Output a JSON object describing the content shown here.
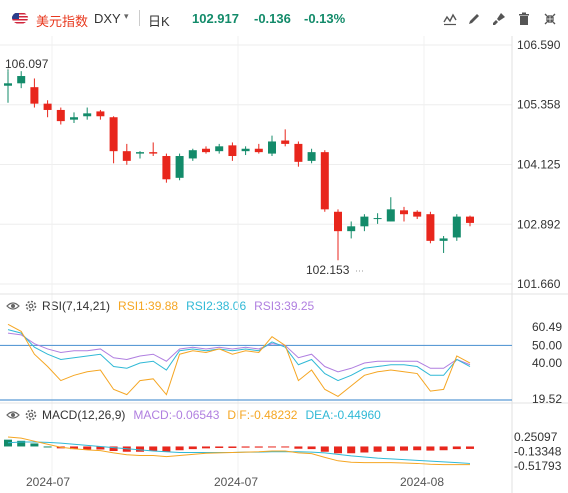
{
  "toolbar": {
    "name": "美元指数",
    "symbol": "DXY",
    "caret": "▾",
    "period": "日K",
    "price": "102.917",
    "change": "-0.136",
    "change_pct": "-0.13%",
    "up_color": "#e8261c",
    "down_color": "#138b6a"
  },
  "icons": [
    "line-draw-icon",
    "pen-icon",
    "brush-icon",
    "trash-icon",
    "collapse-icon",
    "eye-icon",
    "gear-icon"
  ],
  "price_pane": {
    "y_ticks": [
      "106.590",
      "105.358",
      "104.125",
      "102.892",
      "101.660"
    ],
    "high_label": "106.097",
    "low_label": "102.153"
  },
  "rsi_pane": {
    "title": "RSI(7,14,21)",
    "rsi1": "RSI1:39.88",
    "rsi2": "RSI2:38.06",
    "rsi3": "RSI3:39.25",
    "y_ticks": [
      "60.49",
      "50.00",
      "40.00",
      "19.52"
    ],
    "colors": {
      "rsi1": "#f5a623",
      "rsi2": "#30b9d6",
      "rsi3": "#b07fe0"
    }
  },
  "macd_pane": {
    "title": "MACD(12,26,9)",
    "macd": "MACD:-0.06543",
    "dif": "DIF:-0.48232",
    "dea": "DEA:-0.44960",
    "y_ticks": [
      "0.25097",
      "-0.13348",
      "-0.51793"
    ],
    "colors": {
      "macd": "#b07fe0",
      "dif": "#f5a623",
      "dea": "#30b9d6"
    }
  },
  "x_labels": [
    "2024-07",
    "2024-07",
    "2024-08"
  ],
  "chart_data": {
    "type": "candlestick",
    "y_range": [
      101.66,
      106.59
    ],
    "candles": [
      {
        "o": 105.75,
        "h": 106.1,
        "l": 105.4,
        "c": 105.8
      },
      {
        "o": 105.8,
        "h": 106.05,
        "l": 105.7,
        "c": 105.95
      },
      {
        "o": 105.72,
        "h": 105.9,
        "l": 105.3,
        "c": 105.38
      },
      {
        "o": 105.38,
        "h": 105.45,
        "l": 105.1,
        "c": 105.25
      },
      {
        "o": 105.25,
        "h": 105.3,
        "l": 104.95,
        "c": 105.02
      },
      {
        "o": 105.05,
        "h": 105.2,
        "l": 104.98,
        "c": 105.1
      },
      {
        "o": 105.12,
        "h": 105.3,
        "l": 105.05,
        "c": 105.18
      },
      {
        "o": 105.22,
        "h": 105.25,
        "l": 105.05,
        "c": 105.12
      },
      {
        "o": 105.1,
        "h": 105.12,
        "l": 104.15,
        "c": 104.4
      },
      {
        "o": 104.4,
        "h": 104.55,
        "l": 104.12,
        "c": 104.2
      },
      {
        "o": 104.35,
        "h": 104.4,
        "l": 104.25,
        "c": 104.38
      },
      {
        "o": 104.38,
        "h": 104.58,
        "l": 104.3,
        "c": 104.35
      },
      {
        "o": 104.3,
        "h": 104.35,
        "l": 103.75,
        "c": 103.82
      },
      {
        "o": 103.85,
        "h": 104.35,
        "l": 103.8,
        "c": 104.3
      },
      {
        "o": 104.25,
        "h": 104.45,
        "l": 104.2,
        "c": 104.42
      },
      {
        "o": 104.45,
        "h": 104.5,
        "l": 104.35,
        "c": 104.38
      },
      {
        "o": 104.4,
        "h": 104.55,
        "l": 104.35,
        "c": 104.5
      },
      {
        "o": 104.52,
        "h": 104.58,
        "l": 104.2,
        "c": 104.3
      },
      {
        "o": 104.4,
        "h": 104.5,
        "l": 104.32,
        "c": 104.45
      },
      {
        "o": 104.45,
        "h": 104.55,
        "l": 104.35,
        "c": 104.38
      },
      {
        "o": 104.35,
        "h": 104.72,
        "l": 104.3,
        "c": 104.6
      },
      {
        "o": 104.62,
        "h": 104.85,
        "l": 104.5,
        "c": 104.55
      },
      {
        "o": 104.55,
        "h": 104.6,
        "l": 104.08,
        "c": 104.18
      },
      {
        "o": 104.2,
        "h": 104.45,
        "l": 104.15,
        "c": 104.38
      },
      {
        "o": 104.38,
        "h": 104.42,
        "l": 103.15,
        "c": 103.2
      },
      {
        "o": 103.15,
        "h": 103.2,
        "l": 102.15,
        "c": 102.75
      },
      {
        "o": 102.75,
        "h": 102.95,
        "l": 102.6,
        "c": 102.85
      },
      {
        "o": 102.85,
        "h": 103.1,
        "l": 102.75,
        "c": 103.05
      },
      {
        "o": 103.0,
        "h": 103.12,
        "l": 102.9,
        "c": 103.02
      },
      {
        "o": 102.95,
        "h": 103.45,
        "l": 102.95,
        "c": 103.2
      },
      {
        "o": 103.18,
        "h": 103.25,
        "l": 102.95,
        "c": 103.1
      },
      {
        "o": 103.15,
        "h": 103.18,
        "l": 103.0,
        "c": 103.05
      },
      {
        "o": 103.1,
        "h": 103.15,
        "l": 102.5,
        "c": 102.55
      },
      {
        "o": 102.55,
        "h": 102.65,
        "l": 102.3,
        "c": 102.6
      },
      {
        "o": 102.62,
        "h": 103.1,
        "l": 102.55,
        "c": 103.05
      },
      {
        "o": 103.05,
        "h": 103.07,
        "l": 102.85,
        "c": 102.92
      }
    ],
    "rsi1": [
      62,
      58,
      45,
      38,
      30,
      33,
      35,
      36,
      25,
      22,
      30,
      31,
      22,
      45,
      47,
      46,
      48,
      45,
      47,
      46,
      55,
      50,
      30,
      36,
      25,
      21,
      27,
      33,
      35,
      36,
      35,
      34,
      24,
      25,
      44,
      40
    ],
    "rsi2": [
      59,
      57,
      49,
      45,
      42,
      43,
      44,
      45,
      38,
      37,
      40,
      41,
      36,
      47,
      48,
      47,
      48,
      47,
      48,
      47,
      52,
      49,
      39,
      42,
      34,
      30,
      33,
      37,
      38,
      39,
      39,
      38,
      33,
      33,
      42,
      38
    ],
    "rsi3": [
      57,
      56,
      51,
      48,
      46,
      47,
      47,
      48,
      43,
      42,
      44,
      45,
      41,
      48,
      49,
      48,
      49,
      48,
      49,
      48,
      51,
      50,
      43,
      45,
      38,
      35,
      37,
      40,
      41,
      41,
      41,
      41,
      37,
      37,
      42,
      39
    ],
    "macd_hist": [
      0.18,
      0.15,
      0.08,
      0.0,
      -0.05,
      -0.07,
      -0.08,
      -0.08,
      -0.12,
      -0.14,
      -0.14,
      -0.12,
      -0.14,
      -0.1,
      -0.07,
      -0.05,
      -0.04,
      -0.04,
      -0.03,
      -0.03,
      -0.01,
      -0.01,
      -0.06,
      -0.07,
      -0.14,
      -0.18,
      -0.18,
      -0.16,
      -0.14,
      -0.12,
      -0.11,
      -0.1,
      -0.11,
      -0.1,
      -0.07,
      -0.065
    ],
    "dif": [
      0.25,
      0.22,
      0.14,
      0.06,
      -0.02,
      -0.06,
      -0.09,
      -0.11,
      -0.17,
      -0.22,
      -0.24,
      -0.24,
      -0.27,
      -0.24,
      -0.21,
      -0.18,
      -0.17,
      -0.16,
      -0.15,
      -0.14,
      -0.12,
      -0.12,
      -0.17,
      -0.19,
      -0.29,
      -0.38,
      -0.42,
      -0.43,
      -0.43,
      -0.43,
      -0.44,
      -0.45,
      -0.47,
      -0.48,
      -0.48,
      -0.48
    ],
    "dea": [
      0.1,
      0.12,
      0.12,
      0.11,
      0.09,
      0.06,
      0.03,
      0.0,
      -0.03,
      -0.06,
      -0.09,
      -0.12,
      -0.14,
      -0.16,
      -0.16,
      -0.16,
      -0.16,
      -0.16,
      -0.15,
      -0.15,
      -0.14,
      -0.14,
      -0.14,
      -0.15,
      -0.17,
      -0.21,
      -0.25,
      -0.28,
      -0.31,
      -0.33,
      -0.35,
      -0.37,
      -0.39,
      -0.41,
      -0.43,
      -0.45
    ]
  }
}
